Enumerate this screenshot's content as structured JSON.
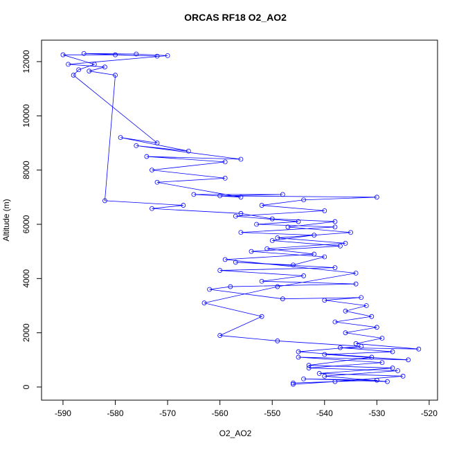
{
  "chart_data": {
    "type": "line",
    "title": "ORCAS RF18 O2_AO2",
    "x_label": "O2_AO2",
    "y_label": "Altitude (m)",
    "color": "#0000ff",
    "markers": true,
    "xlim": [
      -594.1,
      -518.4
    ],
    "ylim": [
      -485,
      12791
    ],
    "xticks": [
      -590,
      -580,
      -570,
      -560,
      -550,
      -540,
      -530,
      -520
    ],
    "yticks": [
      0,
      2000,
      4000,
      6000,
      8000,
      10000,
      12000
    ],
    "x": [
      -546,
      -530,
      -544,
      -528,
      -540,
      -526,
      -543,
      -529,
      -545,
      -524,
      -540,
      -527,
      -537,
      -522,
      -534,
      -529,
      -536,
      -530,
      -538,
      -531,
      -536,
      -532,
      -540,
      -533,
      -548,
      -562,
      -558,
      -534,
      -552,
      -544,
      -560,
      -538,
      -557,
      -546,
      -540,
      -554,
      -537,
      -550,
      -542,
      -556,
      -538,
      -553,
      -545,
      -557,
      -540,
      -552,
      -544,
      -530,
      -560,
      -548,
      -565,
      -556,
      -572,
      -559,
      -573,
      -559,
      -574,
      -556,
      -576,
      -566,
      -579,
      -572,
      -588,
      -587,
      -584,
      -590,
      -580,
      -572,
      -586,
      -576,
      -570,
      -589,
      -582,
      -585,
      -580,
      -582,
      -567,
      -573,
      -556,
      -550,
      -538,
      -547,
      -535,
      -549,
      -536,
      -551,
      -542,
      -559,
      -534,
      -549,
      -563,
      -552,
      -560,
      -549,
      -533,
      -545,
      -531,
      -543,
      -527,
      -541,
      -525,
      -538,
      -546
    ],
    "values": [
      150,
      250,
      300,
      200,
      400,
      600,
      700,
      900,
      1100,
      1000,
      1200,
      1300,
      1450,
      1400,
      1600,
      1800,
      2000,
      2200,
      2400,
      2600,
      2800,
      3000,
      3200,
      3300,
      3250,
      3600,
      3700,
      3800,
      3900,
      4100,
      4300,
      4400,
      4600,
      4500,
      4800,
      5000,
      5200,
      5400,
      5600,
      5700,
      5900,
      6000,
      6100,
      6300,
      6500,
      6700,
      6900,
      7000,
      7050,
      7100,
      7100,
      7000,
      7550,
      7700,
      8000,
      8300,
      8500,
      8400,
      8900,
      8700,
      9200,
      9000,
      11500,
      11700,
      11900,
      12250,
      12250,
      12200,
      12300,
      12280,
      12220,
      11900,
      11800,
      11650,
      11500,
      6870,
      6700,
      6580,
      6400,
      6200,
      6100,
      5900,
      5700,
      5500,
      5300,
      5100,
      4900,
      4700,
      4200,
      3700,
      3100,
      2600,
      1900,
      1700,
      1500,
      1300,
      1100,
      800,
      700,
      500,
      400,
      200,
      100
    ]
  }
}
